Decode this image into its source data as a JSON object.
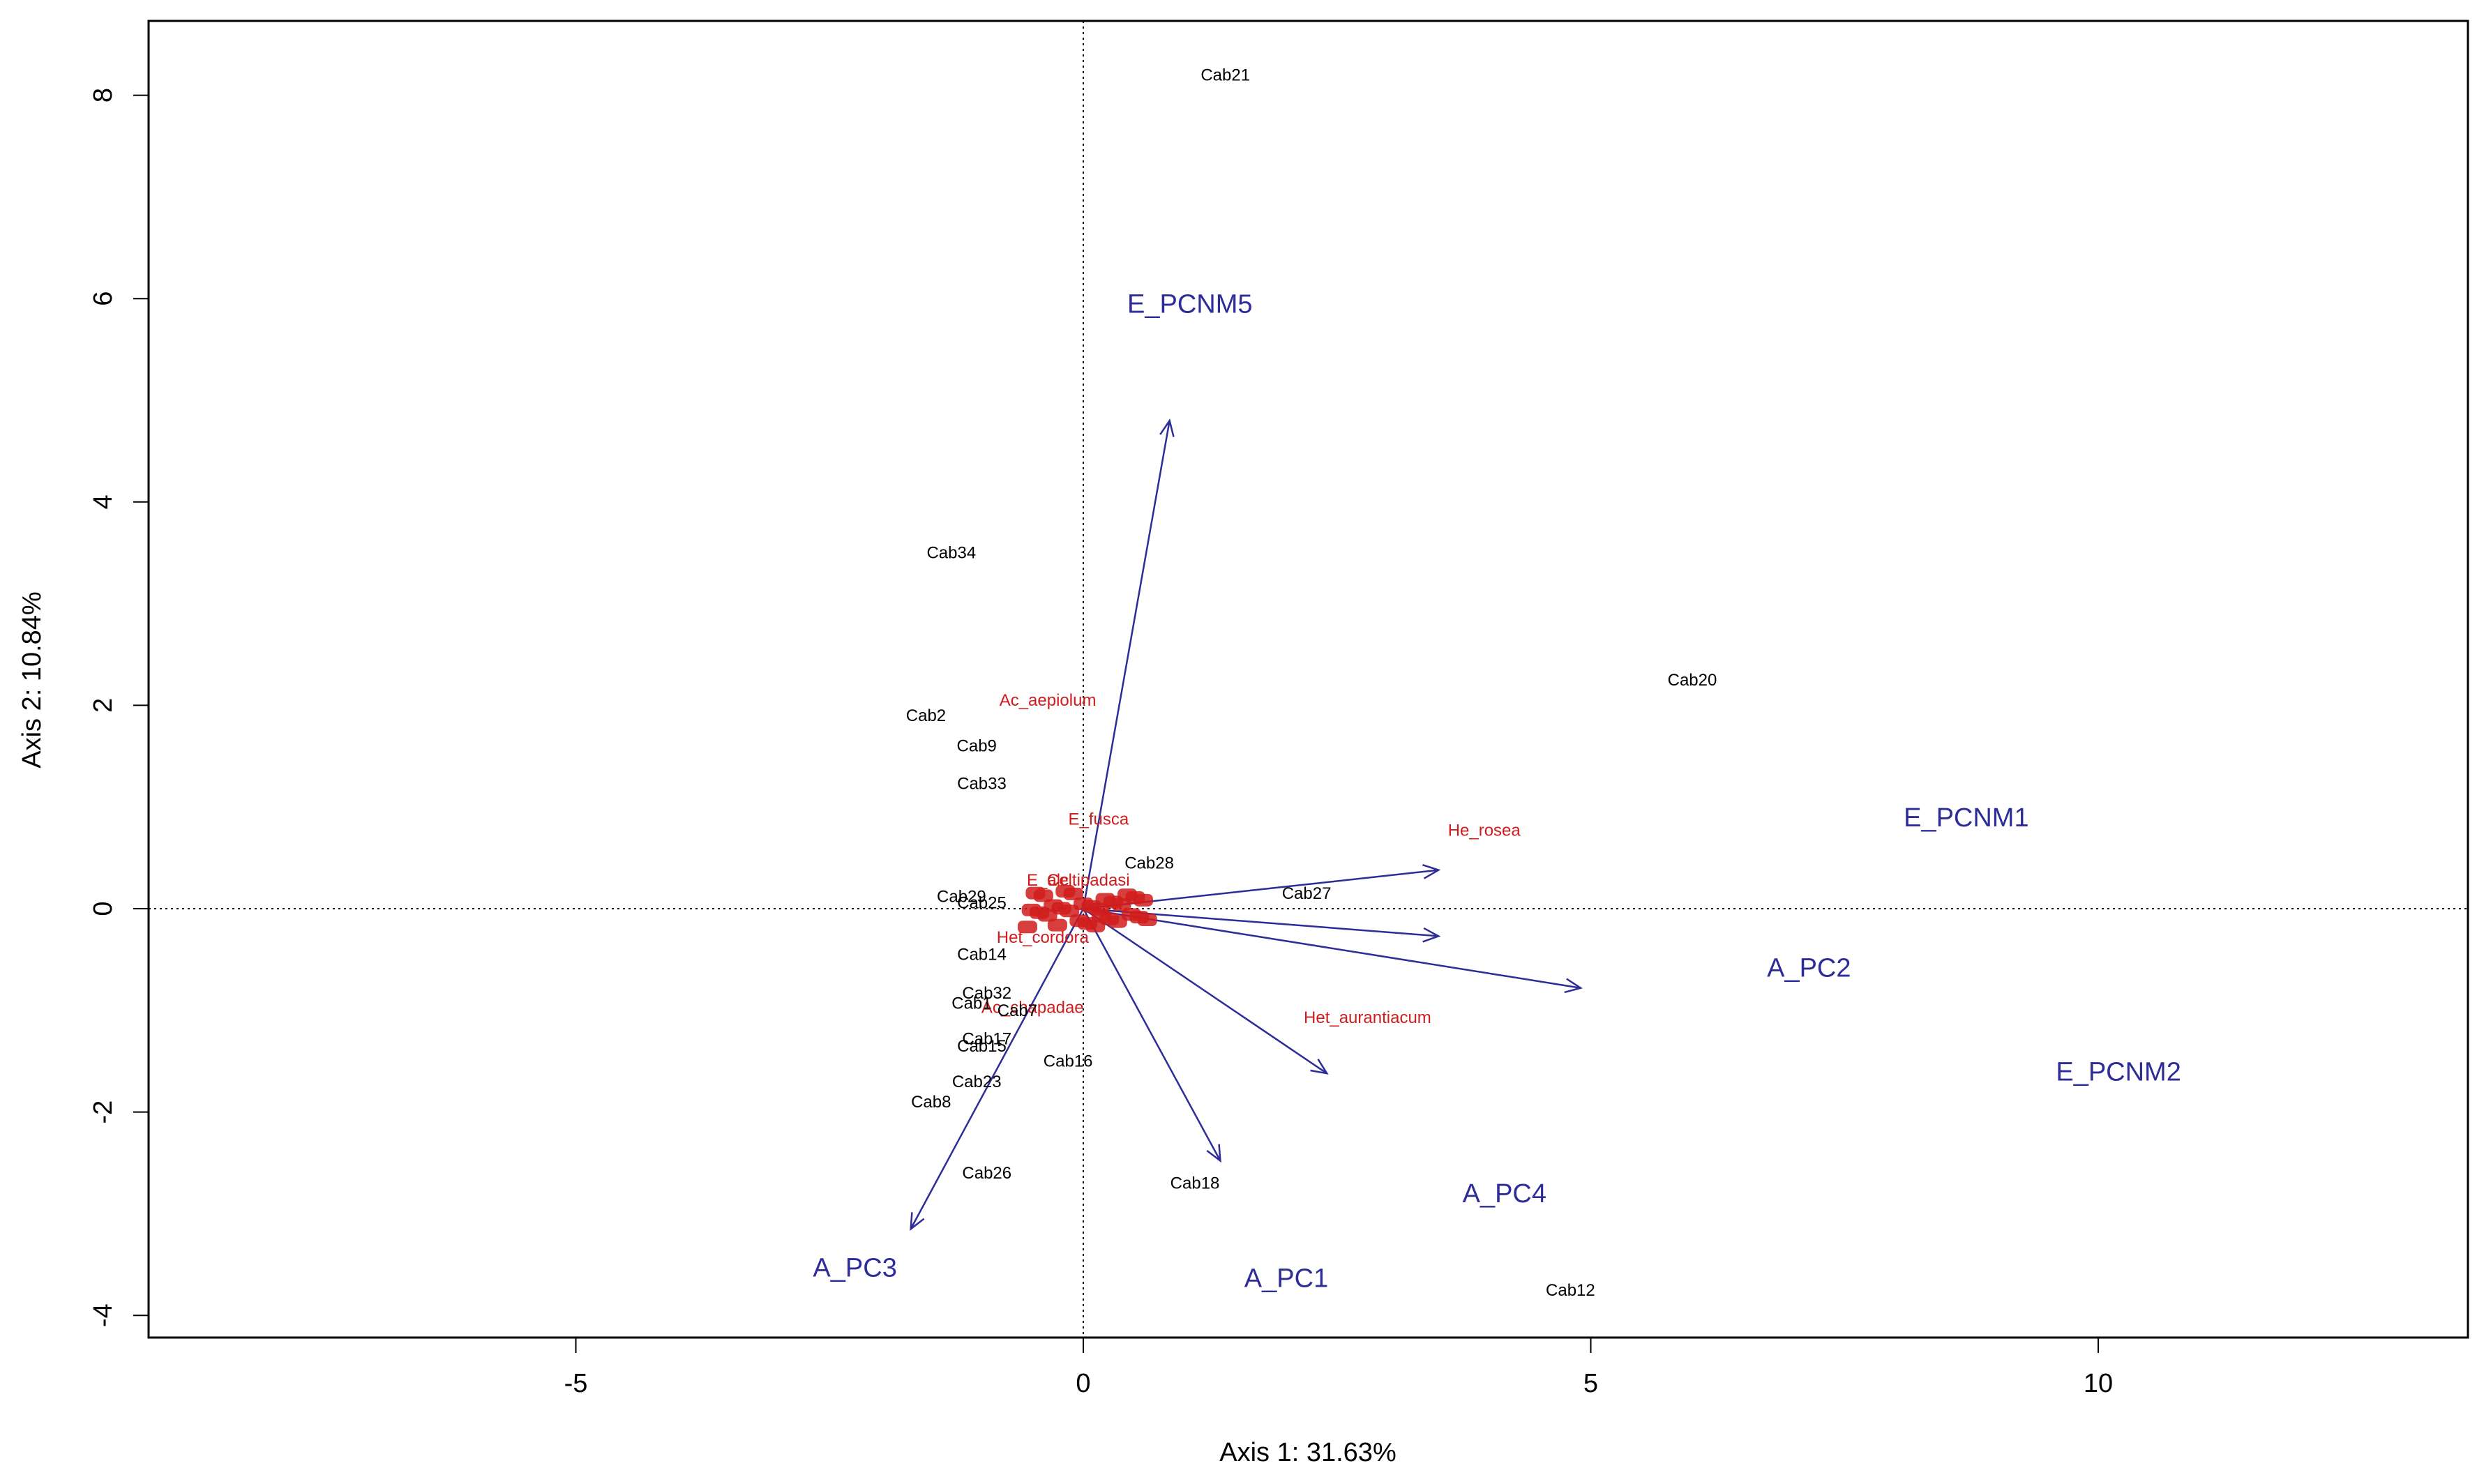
{
  "chart_data": {
    "type": "scatter",
    "title": "",
    "xlabel": "Axis 1: 31.63%",
    "ylabel": "Axis 2: 10.84%",
    "xlim": [
      -9.2,
      13.7
    ],
    "ylim": [
      -4.3,
      8.75
    ],
    "x_ticks": [
      -5,
      0,
      5,
      10
    ],
    "y_ticks": [
      -4,
      -2,
      0,
      2,
      4,
      6,
      8
    ],
    "reference_lines": {
      "x": 0,
      "y": 0
    },
    "colors": {
      "sites": "#000000",
      "species": "#d01c1c",
      "vectors": "#2d2d9a"
    },
    "sites": [
      {
        "label": "Cab21",
        "x": 1.4,
        "y": 8.2
      },
      {
        "label": "Cab34",
        "x": -1.3,
        "y": 3.5
      },
      {
        "label": "Cab20",
        "x": 6.0,
        "y": 2.25
      },
      {
        "label": "Cab2",
        "x": -1.55,
        "y": 1.9
      },
      {
        "label": "Cab9",
        "x": -1.05,
        "y": 1.6
      },
      {
        "label": "Cab33",
        "x": -1.0,
        "y": 1.23
      },
      {
        "label": "Cab28",
        "x": 0.65,
        "y": 0.45
      },
      {
        "label": "Cab27",
        "x": 2.2,
        "y": 0.15
      },
      {
        "label": "Cab29",
        "x": -1.2,
        "y": 0.12
      },
      {
        "label": "Cab25",
        "x": -1.0,
        "y": 0.06
      },
      {
        "label": "Cab14",
        "x": -1.0,
        "y": -0.45
      },
      {
        "label": "Cab32",
        "x": -0.95,
        "y": -0.83
      },
      {
        "label": "Cab1",
        "x": -1.1,
        "y": -0.93
      },
      {
        "label": "Cab7",
        "x": -0.65,
        "y": -1.0
      },
      {
        "label": "Cab17",
        "x": -0.95,
        "y": -1.28
      },
      {
        "label": "Cab15",
        "x": -1.0,
        "y": -1.35
      },
      {
        "label": "Cab16",
        "x": -0.15,
        "y": -1.5
      },
      {
        "label": "Cab23",
        "x": -1.05,
        "y": -1.7
      },
      {
        "label": "Cab8",
        "x": -1.5,
        "y": -1.9
      },
      {
        "label": "Cab26",
        "x": -0.95,
        "y": -2.6
      },
      {
        "label": "Cab18",
        "x": 1.1,
        "y": -2.7
      },
      {
        "label": "Cab12",
        "x": 4.8,
        "y": -3.75
      }
    ],
    "species": [
      {
        "label": "Ac_aepiolum",
        "x": -0.35,
        "y": 2.05
      },
      {
        "label": "E_fusca",
        "x": 0.15,
        "y": 0.88
      },
      {
        "label": "He_rosea",
        "x": 3.95,
        "y": 0.77
      },
      {
        "label": "E_alc",
        "x": -0.35,
        "y": 0.28
      },
      {
        "label": "Celtipadasi",
        "x": 0.05,
        "y": 0.28
      },
      {
        "label": "Het_cordora",
        "x": -0.4,
        "y": -0.28
      },
      {
        "label": "Ac_chapadae",
        "x": -0.5,
        "y": -0.97
      },
      {
        "label": "Het_aurantiacum",
        "x": 2.8,
        "y": -1.07
      }
    ],
    "vectors": [
      {
        "label": "E_PCNM5",
        "x": 0.85,
        "y": 4.8,
        "label_x": 1.05,
        "label_y": 5.95
      },
      {
        "label": "E_PCNM1",
        "x": 3.5,
        "y": 0.38,
        "label_x": 8.7,
        "label_y": 0.9
      },
      {
        "label": "E_PCNM2",
        "x": 3.5,
        "y": -0.27,
        "label_x": 10.2,
        "label_y": -1.6
      },
      {
        "label": "A_PC2",
        "x": 4.9,
        "y": -0.78,
        "label_x": 7.15,
        "label_y": -0.58
      },
      {
        "label": "A_PC4",
        "x": 2.4,
        "y": -1.62,
        "label_x": 4.15,
        "label_y": -2.8
      },
      {
        "label": "A_PC1",
        "x": 1.35,
        "y": -2.48,
        "label_x": 2.0,
        "label_y": -3.63
      },
      {
        "label": "A_PC3",
        "x": -1.7,
        "y": -3.15,
        "label_x": -2.25,
        "label_y": -3.53
      }
    ],
    "species_cluster": {
      "x": 0.0,
      "y": 0.0,
      "count": 30
    }
  }
}
